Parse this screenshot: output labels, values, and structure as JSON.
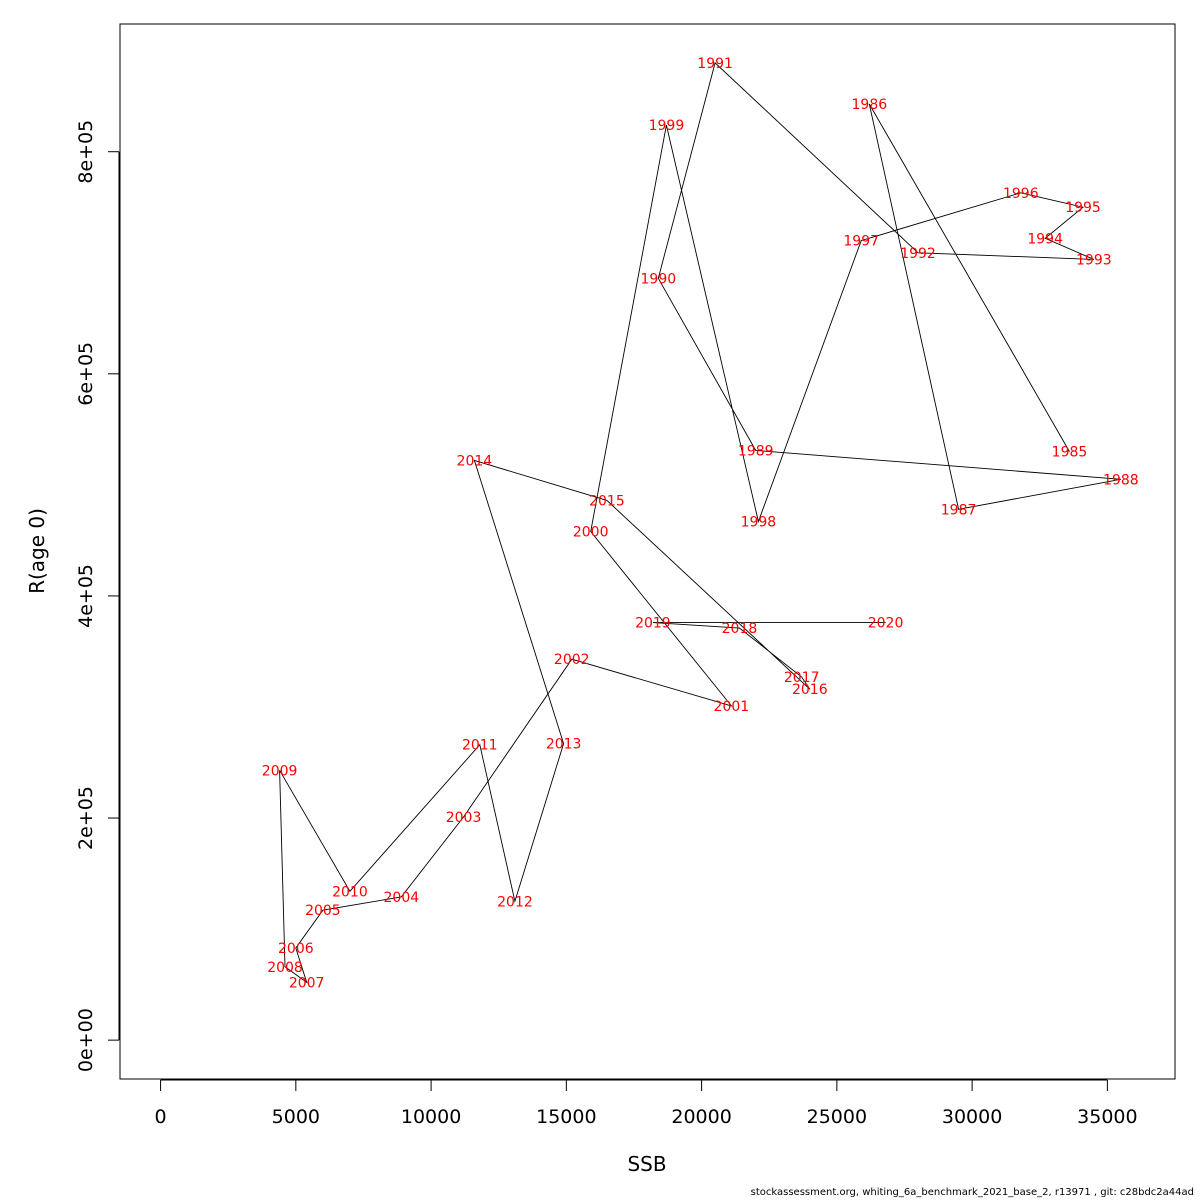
{
  "chart_data": {
    "type": "line",
    "title": "",
    "xlabel": "SSB",
    "ylabel": "R(age 0)",
    "xlim": [
      -1500,
      37500
    ],
    "ylim": [
      -35000,
      915000
    ],
    "xticks": [
      0,
      5000,
      10000,
      15000,
      20000,
      25000,
      30000,
      35000
    ],
    "xtick_labels": [
      "0",
      "5000",
      "10000",
      "15000",
      "20000",
      "25000",
      "30000",
      "35000"
    ],
    "yticks": [
      0,
      200000,
      400000,
      600000,
      800000
    ],
    "ytick_labels": [
      "0e+00",
      "2e+05",
      "4e+05",
      "6e+05",
      "8e+05"
    ],
    "grid": false,
    "line_color": "#000000",
    "label_color": "#ff0000",
    "points": [
      {
        "year": "1985",
        "x": 33600,
        "y": 530000
      },
      {
        "year": "1986",
        "x": 26200,
        "y": 843000
      },
      {
        "year": "1987",
        "x": 29500,
        "y": 478000
      },
      {
        "year": "1988",
        "x": 35500,
        "y": 505000
      },
      {
        "year": "1989",
        "x": 22000,
        "y": 531000
      },
      {
        "year": "1990",
        "x": 18400,
        "y": 686000
      },
      {
        "year": "1991",
        "x": 20500,
        "y": 880000
      },
      {
        "year": "1992",
        "x": 28000,
        "y": 709000
      },
      {
        "year": "1993",
        "x": 34500,
        "y": 703000
      },
      {
        "year": "1994",
        "x": 32700,
        "y": 722000
      },
      {
        "year": "1995",
        "x": 34100,
        "y": 750000
      },
      {
        "year": "1996",
        "x": 31800,
        "y": 763000
      },
      {
        "year": "1997",
        "x": 25900,
        "y": 720000
      },
      {
        "year": "1998",
        "x": 22100,
        "y": 467000
      },
      {
        "year": "1999",
        "x": 18700,
        "y": 824000
      },
      {
        "year": "2000",
        "x": 15900,
        "y": 458000
      },
      {
        "year": "2001",
        "x": 21100,
        "y": 301000
      },
      {
        "year": "2002",
        "x": 15200,
        "y": 343000
      },
      {
        "year": "2003",
        "x": 11200,
        "y": 201000
      },
      {
        "year": "2004",
        "x": 8900,
        "y": 129000
      },
      {
        "year": "2005",
        "x": 6000,
        "y": 117000
      },
      {
        "year": "2006",
        "x": 5000,
        "y": 83000
      },
      {
        "year": "2007",
        "x": 5400,
        "y": 52000
      },
      {
        "year": "2008",
        "x": 4600,
        "y": 66000
      },
      {
        "year": "2009",
        "x": 4400,
        "y": 243000
      },
      {
        "year": "2010",
        "x": 7000,
        "y": 134000
      },
      {
        "year": "2011",
        "x": 11800,
        "y": 266000
      },
      {
        "year": "2012",
        "x": 13100,
        "y": 125000
      },
      {
        "year": "2013",
        "x": 14900,
        "y": 267000
      },
      {
        "year": "2014",
        "x": 11600,
        "y": 522000
      },
      {
        "year": "2015",
        "x": 16500,
        "y": 486000
      },
      {
        "year": "2016",
        "x": 24000,
        "y": 316000
      },
      {
        "year": "2017",
        "x": 23700,
        "y": 327000
      },
      {
        "year": "2018",
        "x": 21400,
        "y": 371000
      },
      {
        "year": "2019",
        "x": 18200,
        "y": 376000
      },
      {
        "year": "2020",
        "x": 26800,
        "y": 376000
      }
    ]
  },
  "footer": "stockassessment.org, whiting_6a_benchmark_2021_base_2, r13971 , git: c28bdc2a44ad"
}
